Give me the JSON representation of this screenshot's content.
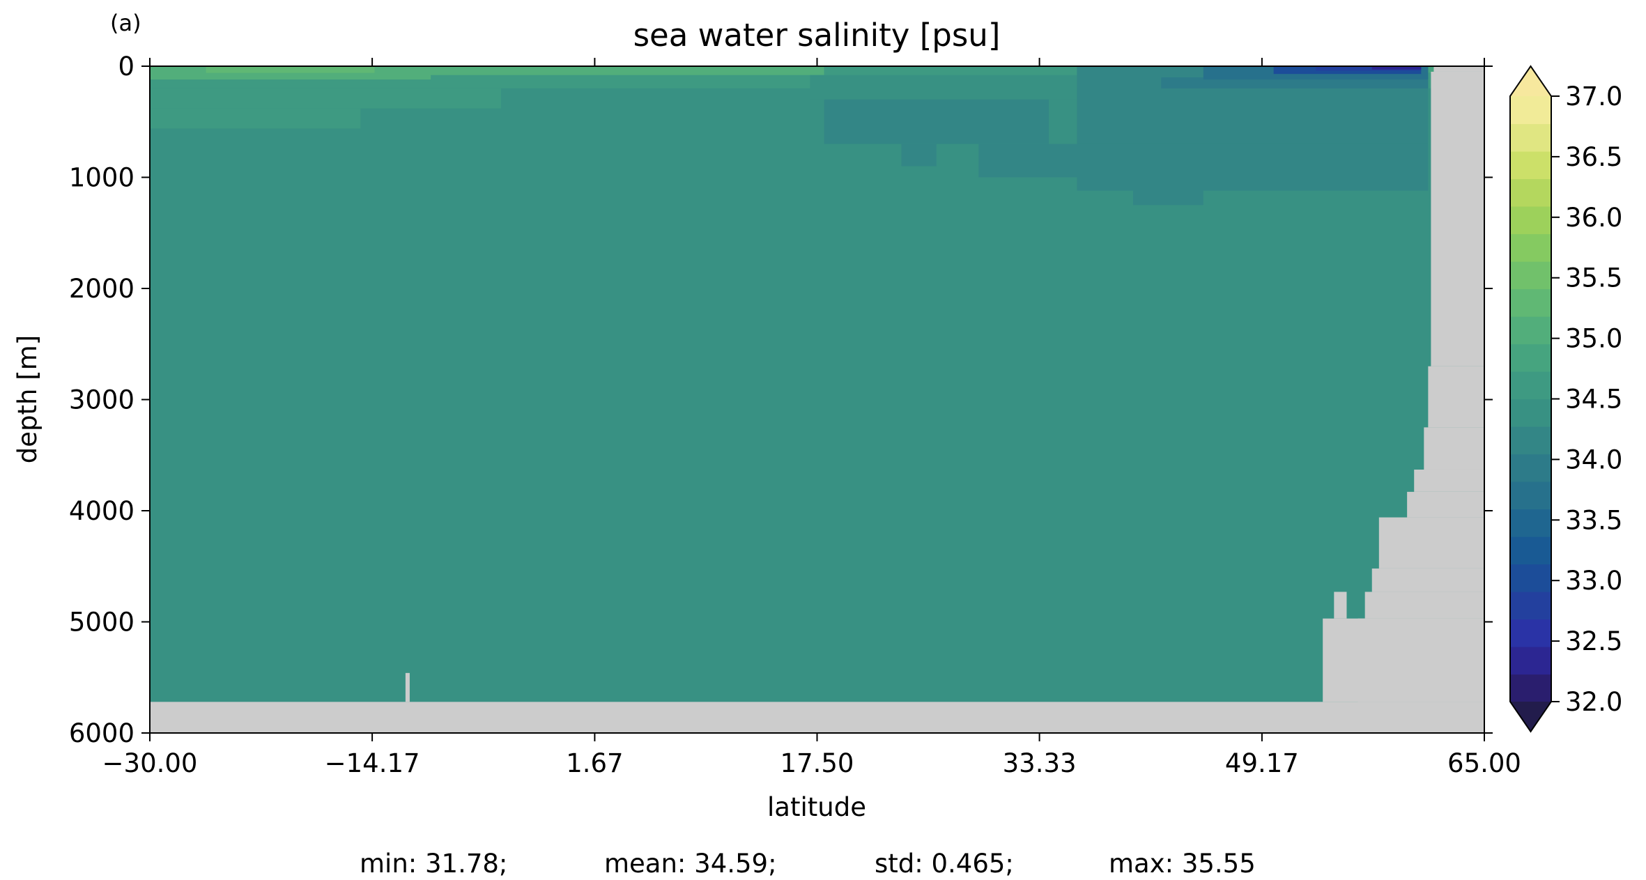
{
  "chart_data": {
    "type": "heatmap",
    "panel_label": "(a)",
    "title": "sea water salinity [psu]",
    "xlabel": "latitude",
    "ylabel": "depth [m]",
    "xlim": [
      -30.0,
      65.0
    ],
    "ylim": [
      6000,
      0
    ],
    "y_inverted": true,
    "x_ticks": [
      "−30.00",
      "−14.17",
      "1.67",
      "17.50",
      "33.33",
      "49.17",
      "65.00"
    ],
    "x_tick_values": [
      -30.0,
      -14.17,
      1.67,
      17.5,
      33.33,
      49.17,
      65.0
    ],
    "y_ticks": [
      "0",
      "1000",
      "2000",
      "3000",
      "4000",
      "5000",
      "6000"
    ],
    "y_tick_values": [
      0,
      1000,
      2000,
      3000,
      4000,
      5000,
      6000
    ],
    "grid": false,
    "colorbar": {
      "colormap": "haline",
      "min": 32.0,
      "max": 37.0,
      "step": 0.25,
      "extend": "both",
      "ticks": [
        "32.0",
        "32.5",
        "33.0",
        "33.5",
        "34.0",
        "34.5",
        "35.0",
        "35.5",
        "36.0",
        "36.5",
        "37.0"
      ],
      "tick_values": [
        32.0,
        32.5,
        33.0,
        33.5,
        34.0,
        34.5,
        35.0,
        35.5,
        36.0,
        36.5,
        37.0
      ],
      "colors": [
        "#2a1e6e",
        "#2c2692",
        "#2a33a6",
        "#23409e",
        "#1c4d99",
        "#195a94",
        "#1f6690",
        "#27718c",
        "#2d7b89",
        "#338686",
        "#389183",
        "#3e9a82",
        "#46a47f",
        "#52ae7b",
        "#60b874",
        "#71c16b",
        "#85ca61",
        "#9dd15b",
        "#b4d75e",
        "#cce069",
        "#e0e682",
        "#f1eb98"
      ],
      "under_color": "#221c4c",
      "over_color": "#f7e89e"
    },
    "land_color": "#cccccc",
    "background_value": 34.55,
    "regions": [
      {
        "x": [
          -30.0,
          65.0
        ],
        "y": [
          0,
          60
        ],
        "value": 35.05
      },
      {
        "x": [
          -30.0,
          65.0
        ],
        "y": [
          60,
          200
        ],
        "value": 34.9
      },
      {
        "x": [
          -30.0,
          -10.0
        ],
        "y": [
          0,
          120
        ],
        "value": 35.3
      },
      {
        "x": [
          -26.0,
          -14.0
        ],
        "y": [
          0,
          60
        ],
        "value": 35.5
      },
      {
        "x": [
          -14.0,
          18.0
        ],
        "y": [
          0,
          80
        ],
        "value": 35.25
      },
      {
        "x": [
          -30.0,
          -5.0
        ],
        "y": [
          200,
          380
        ],
        "value": 34.95
      },
      {
        "x": [
          -30.0,
          -15.0
        ],
        "y": [
          380,
          560
        ],
        "value": 34.8
      },
      {
        "x": [
          18.0,
          36.0
        ],
        "y": [
          0,
          80
        ],
        "value": 34.95
      },
      {
        "x": [
          17.0,
          36.0
        ],
        "y": [
          80,
          300
        ],
        "value": 34.6
      },
      {
        "x": [
          18.0,
          34.0
        ],
        "y": [
          300,
          700
        ],
        "value": 34.38
      },
      {
        "x": [
          23.5,
          26.0
        ],
        "y": [
          700,
          900
        ],
        "value": 34.38
      },
      {
        "x": [
          29.0,
          61.0
        ],
        "y": [
          700,
          1000
        ],
        "value": 34.3
      },
      {
        "x": [
          36.0,
          61.0
        ],
        "y": [
          100,
          700
        ],
        "value": 34.3
      },
      {
        "x": [
          36.0,
          61.0
        ],
        "y": [
          1000,
          1120
        ],
        "value": 34.32
      },
      {
        "x": [
          40.0,
          45.0
        ],
        "y": [
          1120,
          1250
        ],
        "value": 34.32
      },
      {
        "x": [
          36.0,
          61.0
        ],
        "y": [
          0,
          100
        ],
        "value": 34.3
      },
      {
        "x": [
          42.0,
          61.0
        ],
        "y": [
          100,
          200
        ],
        "value": 34.1
      },
      {
        "x": [
          45.0,
          61.0
        ],
        "y": [
          0,
          120
        ],
        "value": 33.8
      },
      {
        "x": [
          50.0,
          60.5
        ],
        "y": [
          0,
          70
        ],
        "value": 33.2
      },
      {
        "x": [
          53.0,
          60.5
        ],
        "y": [
          0,
          40
        ],
        "value": 32.8
      },
      {
        "x": [
          57.0,
          60.5
        ],
        "y": [
          0,
          30
        ],
        "value": 32.4
      }
    ],
    "land": [
      {
        "x": [
          -30.0,
          65.0
        ],
        "y": [
          5720,
          6000
        ]
      },
      {
        "x": [
          -11.8,
          -11.5
        ],
        "y": [
          5460,
          5720
        ]
      },
      {
        "x": [
          53.5,
          65.0
        ],
        "y": [
          4970,
          5720
        ]
      },
      {
        "x": [
          54.3,
          55.2
        ],
        "y": [
          4730,
          4970
        ]
      },
      {
        "x": [
          56.0,
          65.0
        ],
        "y": [
          4970,
          5720
        ]
      },
      {
        "x": [
          56.5,
          65.0
        ],
        "y": [
          4730,
          4970
        ]
      },
      {
        "x": [
          57.0,
          65.0
        ],
        "y": [
          4520,
          4730
        ]
      },
      {
        "x": [
          57.5,
          65.0
        ],
        "y": [
          4060,
          4520
        ]
      },
      {
        "x": [
          59.5,
          65.0
        ],
        "y": [
          3830,
          4060
        ]
      },
      {
        "x": [
          60.0,
          65.0
        ],
        "y": [
          3630,
          3830
        ]
      },
      {
        "x": [
          60.7,
          65.0
        ],
        "y": [
          3250,
          3630
        ]
      },
      {
        "x": [
          61.0,
          65.0
        ],
        "y": [
          2700,
          3250
        ]
      },
      {
        "x": [
          61.2,
          65.0
        ],
        "y": [
          50,
          2700
        ]
      },
      {
        "x": [
          61.4,
          65.0
        ],
        "y": [
          0,
          50
        ]
      }
    ],
    "stats": {
      "min": "min: 31.78;",
      "mean": "mean: 34.59;",
      "std": "std: 0.465;",
      "max": "max: 35.55"
    }
  }
}
